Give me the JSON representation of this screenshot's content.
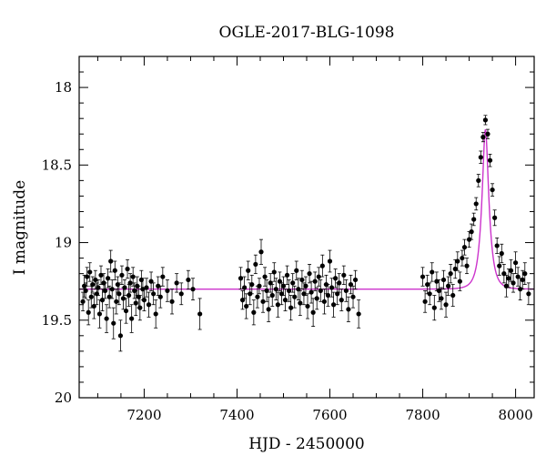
{
  "chart_data": {
    "type": "scatter",
    "title": "OGLE-2017-BLG-1098",
    "xlabel": "HJD - 2450000",
    "ylabel": "I magnitude",
    "xlim": [
      7060,
      8040
    ],
    "ylim": [
      20,
      17.8
    ],
    "y_inverted": true,
    "x_ticks": [
      7200,
      7400,
      7600,
      7800,
      8000
    ],
    "y_ticks": [
      18,
      18.5,
      19,
      19.5,
      20
    ],
    "y_tick_labels": [
      "18",
      "18.5",
      "19",
      "19.5",
      "20"
    ],
    "grid": false,
    "marker_color": "#000000",
    "model_color": "#cc33cc",
    "model": {
      "name": "",
      "baseline_mag": 19.3,
      "peak_time": 7935,
      "peak_mag": 18.27,
      "timescale_days": 15
    },
    "series": [
      {
        "name": "",
        "points": [
          [
            7068,
            19.38,
            0.06
          ],
          [
            7071,
            19.28,
            0.07
          ],
          [
            7074,
            19.31,
            0.05
          ],
          [
            7077,
            19.22,
            0.06
          ],
          [
            7080,
            19.45,
            0.08
          ],
          [
            7083,
            19.19,
            0.06
          ],
          [
            7086,
            19.35,
            0.07
          ],
          [
            7089,
            19.27,
            0.05
          ],
          [
            7092,
            19.41,
            0.08
          ],
          [
            7095,
            19.24,
            0.06
          ],
          [
            7098,
            19.33,
            0.07
          ],
          [
            7101,
            19.29,
            0.05
          ],
          [
            7104,
            19.46,
            0.09
          ],
          [
            7107,
            19.21,
            0.06
          ],
          [
            7110,
            19.37,
            0.07
          ],
          [
            7113,
            19.26,
            0.06
          ],
          [
            7116,
            19.31,
            0.05
          ],
          [
            7119,
            19.49,
            0.09
          ],
          [
            7122,
            19.23,
            0.06
          ],
          [
            7125,
            19.35,
            0.07
          ],
          [
            7128,
            19.12,
            0.07
          ],
          [
            7131,
            19.3,
            0.06
          ],
          [
            7134,
            19.52,
            0.1
          ],
          [
            7137,
            19.18,
            0.06
          ],
          [
            7140,
            19.38,
            0.08
          ],
          [
            7143,
            19.27,
            0.05
          ],
          [
            7146,
            19.33,
            0.07
          ],
          [
            7149,
            19.6,
            0.1
          ],
          [
            7152,
            19.21,
            0.06
          ],
          [
            7155,
            19.36,
            0.07
          ],
          [
            7158,
            19.29,
            0.05
          ],
          [
            7161,
            19.44,
            0.08
          ],
          [
            7164,
            19.17,
            0.06
          ],
          [
            7167,
            19.34,
            0.07
          ],
          [
            7170,
            19.26,
            0.06
          ],
          [
            7173,
            19.49,
            0.09
          ],
          [
            7176,
            19.22,
            0.06
          ],
          [
            7179,
            19.31,
            0.05
          ],
          [
            7182,
            19.39,
            0.08
          ],
          [
            7185,
            19.28,
            0.06
          ],
          [
            7188,
            19.35,
            0.07
          ],
          [
            7191,
            19.42,
            0.08
          ],
          [
            7194,
            19.24,
            0.06
          ],
          [
            7197,
            19.3,
            0.07
          ],
          [
            7200,
            19.37,
            0.07
          ],
          [
            7205,
            19.29,
            0.06
          ],
          [
            7210,
            19.4,
            0.08
          ],
          [
            7215,
            19.25,
            0.06
          ],
          [
            7220,
            19.33,
            0.07
          ],
          [
            7225,
            19.46,
            0.09
          ],
          [
            7230,
            19.28,
            0.06
          ],
          [
            7235,
            19.35,
            0.07
          ],
          [
            7240,
            19.22,
            0.06
          ],
          [
            7250,
            19.31,
            0.07
          ],
          [
            7260,
            19.38,
            0.08
          ],
          [
            7270,
            19.26,
            0.06
          ],
          [
            7280,
            19.33,
            0.07
          ],
          [
            7295,
            19.24,
            0.06
          ],
          [
            7305,
            19.3,
            0.07
          ],
          [
            7320,
            19.46,
            0.1
          ],
          [
            7408,
            19.23,
            0.07
          ],
          [
            7412,
            19.37,
            0.06
          ],
          [
            7416,
            19.29,
            0.07
          ],
          [
            7420,
            19.41,
            0.08
          ],
          [
            7424,
            19.18,
            0.06
          ],
          [
            7428,
            19.33,
            0.07
          ],
          [
            7432,
            19.27,
            0.06
          ],
          [
            7436,
            19.45,
            0.08
          ],
          [
            7440,
            19.14,
            0.06
          ],
          [
            7444,
            19.35,
            0.07
          ],
          [
            7448,
            19.28,
            0.05
          ],
          [
            7452,
            19.06,
            0.08
          ],
          [
            7456,
            19.38,
            0.07
          ],
          [
            7460,
            19.22,
            0.06
          ],
          [
            7464,
            19.31,
            0.07
          ],
          [
            7468,
            19.43,
            0.08
          ],
          [
            7472,
            19.26,
            0.06
          ],
          [
            7476,
            19.34,
            0.07
          ],
          [
            7480,
            19.19,
            0.06
          ],
          [
            7484,
            19.3,
            0.07
          ],
          [
            7488,
            19.4,
            0.08
          ],
          [
            7492,
            19.25,
            0.06
          ],
          [
            7496,
            19.33,
            0.07
          ],
          [
            7500,
            19.28,
            0.06
          ],
          [
            7504,
            19.37,
            0.07
          ],
          [
            7508,
            19.21,
            0.06
          ],
          [
            7512,
            19.31,
            0.07
          ],
          [
            7516,
            19.42,
            0.08
          ],
          [
            7520,
            19.26,
            0.06
          ],
          [
            7524,
            19.35,
            0.07
          ],
          [
            7528,
            19.18,
            0.06
          ],
          [
            7532,
            19.3,
            0.07
          ],
          [
            7536,
            19.39,
            0.08
          ],
          [
            7540,
            19.24,
            0.06
          ],
          [
            7544,
            19.33,
            0.07
          ],
          [
            7548,
            19.28,
            0.06
          ],
          [
            7552,
            19.41,
            0.08
          ],
          [
            7556,
            19.2,
            0.06
          ],
          [
            7560,
            19.32,
            0.07
          ],
          [
            7564,
            19.45,
            0.09
          ],
          [
            7568,
            19.25,
            0.06
          ],
          [
            7572,
            19.36,
            0.07
          ],
          [
            7576,
            19.22,
            0.06
          ],
          [
            7580,
            19.31,
            0.07
          ],
          [
            7584,
            19.15,
            0.07
          ],
          [
            7588,
            19.38,
            0.08
          ],
          [
            7592,
            19.27,
            0.06
          ],
          [
            7596,
            19.34,
            0.07
          ],
          [
            7600,
            19.12,
            0.07
          ],
          [
            7604,
            19.29,
            0.06
          ],
          [
            7608,
            19.4,
            0.08
          ],
          [
            7612,
            19.23,
            0.06
          ],
          [
            7616,
            19.33,
            0.07
          ],
          [
            7620,
            19.26,
            0.06
          ],
          [
            7625,
            19.37,
            0.07
          ],
          [
            7630,
            19.21,
            0.06
          ],
          [
            7635,
            19.31,
            0.07
          ],
          [
            7640,
            19.43,
            0.08
          ],
          [
            7645,
            19.27,
            0.06
          ],
          [
            7650,
            19.35,
            0.07
          ],
          [
            7655,
            19.24,
            0.06
          ],
          [
            7662,
            19.46,
            0.09
          ],
          [
            7800,
            19.22,
            0.06
          ],
          [
            7805,
            19.38,
            0.07
          ],
          [
            7810,
            19.27,
            0.06
          ],
          [
            7815,
            19.33,
            0.07
          ],
          [
            7820,
            19.19,
            0.06
          ],
          [
            7825,
            19.42,
            0.08
          ],
          [
            7830,
            19.25,
            0.06
          ],
          [
            7835,
            19.31,
            0.07
          ],
          [
            7840,
            19.36,
            0.07
          ],
          [
            7845,
            19.24,
            0.06
          ],
          [
            7850,
            19.4,
            0.08
          ],
          [
            7855,
            19.28,
            0.06
          ],
          [
            7860,
            19.2,
            0.06
          ],
          [
            7865,
            19.34,
            0.07
          ],
          [
            7870,
            19.17,
            0.06
          ],
          [
            7875,
            19.12,
            0.06
          ],
          [
            7880,
            19.25,
            0.06
          ],
          [
            7885,
            19.1,
            0.05
          ],
          [
            7890,
            19.03,
            0.05
          ],
          [
            7895,
            19.15,
            0.05
          ],
          [
            7900,
            18.98,
            0.05
          ],
          [
            7905,
            18.93,
            0.05
          ],
          [
            7910,
            18.85,
            0.04
          ],
          [
            7915,
            18.75,
            0.04
          ],
          [
            7920,
            18.6,
            0.04
          ],
          [
            7925,
            18.45,
            0.04
          ],
          [
            7930,
            18.32,
            0.03
          ],
          [
            7935,
            18.21,
            0.03
          ],
          [
            7940,
            18.3,
            0.03
          ],
          [
            7945,
            18.47,
            0.04
          ],
          [
            7950,
            18.66,
            0.04
          ],
          [
            7955,
            18.84,
            0.05
          ],
          [
            7960,
            19.02,
            0.05
          ],
          [
            7965,
            19.15,
            0.06
          ],
          [
            7970,
            19.07,
            0.06
          ],
          [
            7975,
            19.2,
            0.06
          ],
          [
            7980,
            19.28,
            0.07
          ],
          [
            7985,
            19.23,
            0.06
          ],
          [
            7990,
            19.18,
            0.07
          ],
          [
            7995,
            19.26,
            0.06
          ],
          [
            8000,
            19.13,
            0.07
          ],
          [
            8005,
            19.22,
            0.06
          ],
          [
            8010,
            19.3,
            0.07
          ],
          [
            8015,
            19.24,
            0.06
          ],
          [
            8020,
            19.2,
            0.07
          ],
          [
            8028,
            19.33,
            0.07
          ]
        ]
      }
    ]
  }
}
